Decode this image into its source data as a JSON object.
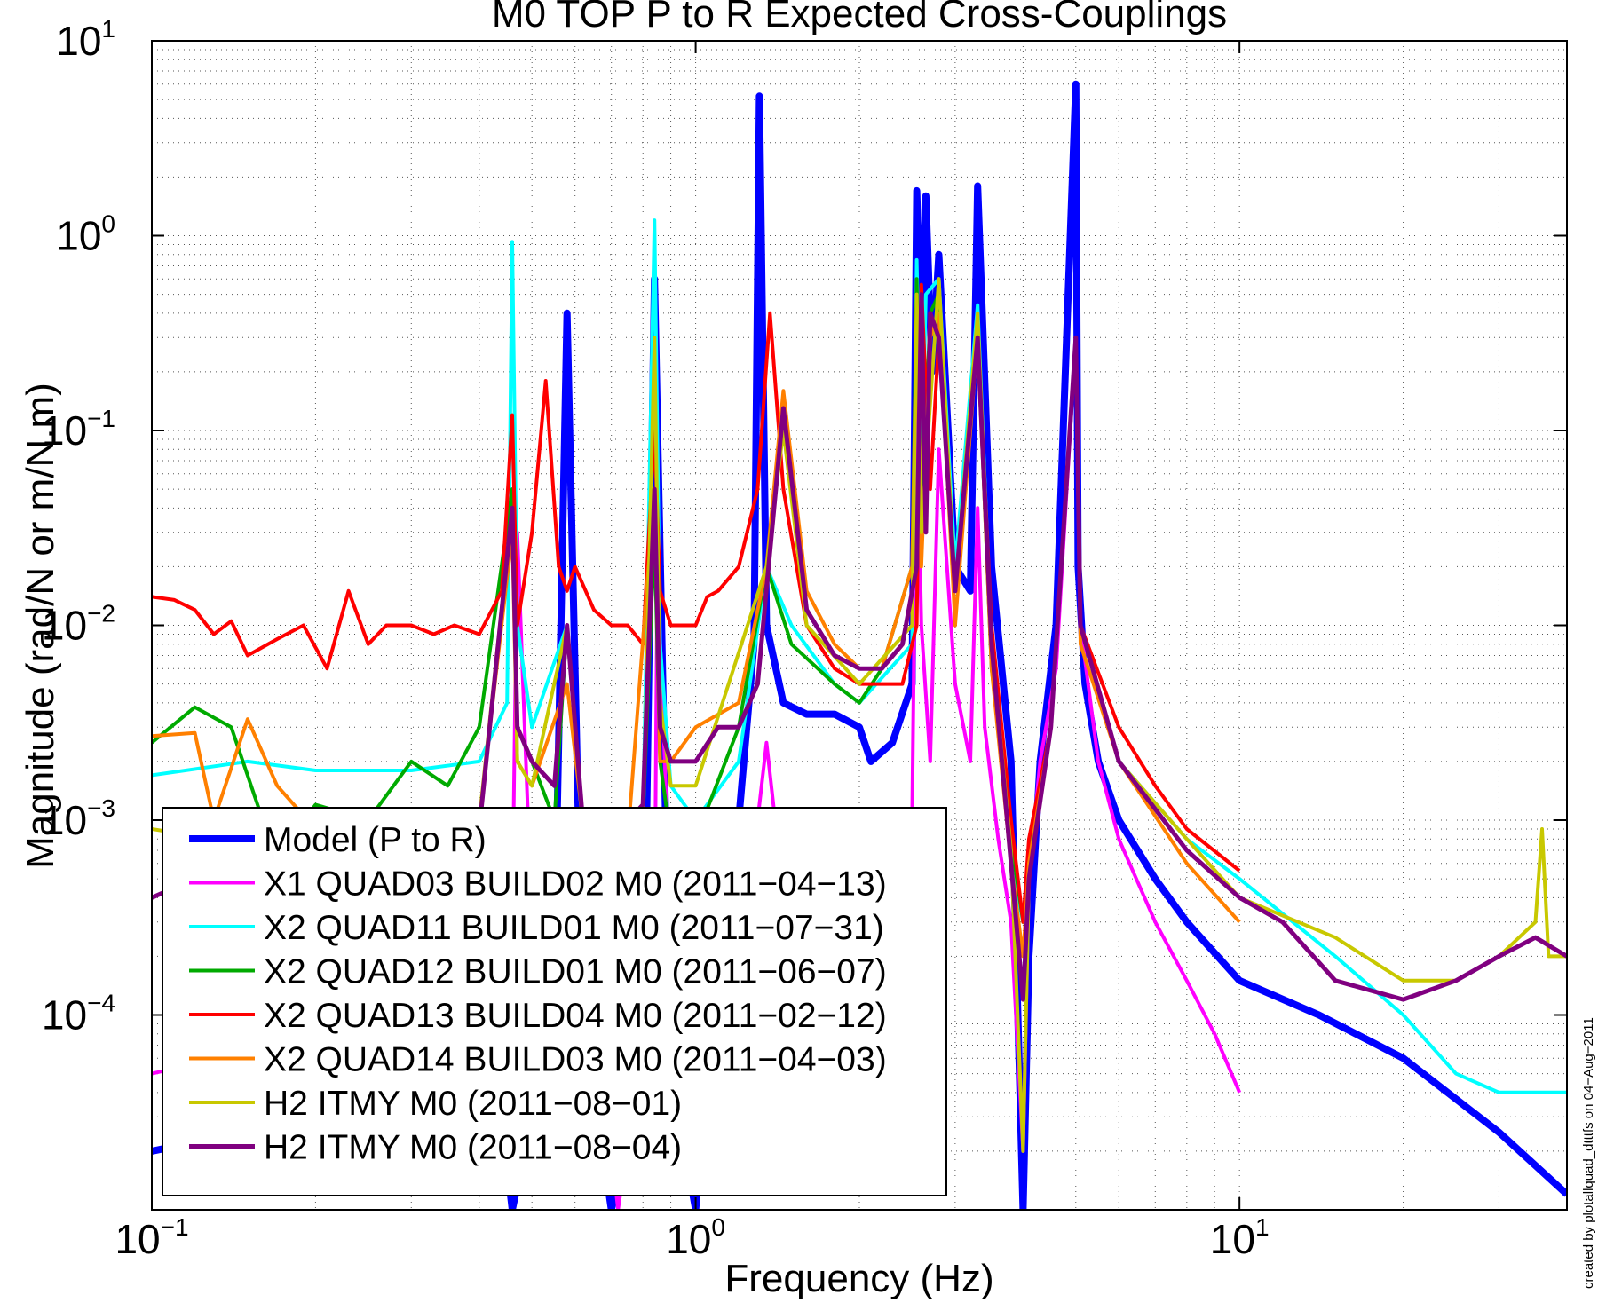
{
  "chart_data": {
    "type": "line",
    "title": "M0 TOP P to R Expected Cross-Couplings",
    "xlabel": "Frequency (Hz)",
    "ylabel": "Magnitude (rad/N or m/N.m)",
    "xscale": "log",
    "yscale": "log",
    "xlim": [
      0.1,
      40
    ],
    "ylim": [
      1e-05,
      10
    ],
    "grid": true,
    "legend_position": "bottom-left",
    "x_ticks": [
      {
        "base": "10",
        "exp": "−1",
        "value": 0.1
      },
      {
        "base": "10",
        "exp": "0",
        "value": 1
      },
      {
        "base": "10",
        "exp": "1",
        "value": 10
      }
    ],
    "y_ticks": [
      {
        "base": "10",
        "exp": "−4",
        "value": 0.0001
      },
      {
        "base": "10",
        "exp": "−3",
        "value": 0.001
      },
      {
        "base": "10",
        "exp": "−2",
        "value": 0.01
      },
      {
        "base": "10",
        "exp": "−1",
        "value": 0.1
      },
      {
        "base": "10",
        "exp": "0",
        "value": 1
      },
      {
        "base": "10",
        "exp": "1",
        "value": 10
      }
    ],
    "series": [
      {
        "name": "Model (P to R)",
        "color": "#0000FF",
        "width": 8,
        "x": [
          0.1,
          0.2,
          0.35,
          0.43,
          0.46,
          0.5,
          0.55,
          0.58,
          0.62,
          0.7,
          0.8,
          0.84,
          0.9,
          1.0,
          1.1,
          1.2,
          1.28,
          1.31,
          1.35,
          1.45,
          1.6,
          1.8,
          2.0,
          2.1,
          2.3,
          2.5,
          2.55,
          2.6,
          2.65,
          2.72,
          2.8,
          3.0,
          3.2,
          3.3,
          3.5,
          3.8,
          4.0,
          4.1,
          4.3,
          4.6,
          5.0,
          5.05,
          5.2,
          5.5,
          6.0,
          7.0,
          8.0,
          10.0,
          14.0,
          20.0,
          30.0,
          40.0
        ],
        "y": [
          2e-05,
          3e-05,
          4e-05,
          5e-05,
          1e-05,
          3e-05,
          0.0002,
          0.4,
          0.0001,
          1e-05,
          5e-05,
          0.6,
          5e-05,
          1e-05,
          0.0002,
          0.001,
          0.008,
          5.2,
          0.01,
          0.004,
          0.0035,
          0.0035,
          0.003,
          0.002,
          0.0025,
          0.005,
          1.7,
          0.3,
          1.6,
          0.2,
          0.8,
          0.02,
          0.015,
          1.8,
          0.02,
          0.002,
          1e-05,
          0.0002,
          0.002,
          0.01,
          6.0,
          0.02,
          0.005,
          0.002,
          0.001,
          0.0005,
          0.0003,
          0.00015,
          0.0001,
          6e-05,
          2.5e-05,
          1.2e-05
        ]
      },
      {
        "name": "X1 QUAD03 BUILD02 M0 (2011−04−13)",
        "color": "#FF00FF",
        "width": 4,
        "x": [
          0.1,
          0.3,
          0.46,
          0.47,
          0.5,
          0.57,
          0.6,
          0.72,
          0.84,
          0.85,
          0.9,
          1.0,
          1.2,
          1.3,
          1.35,
          1.4,
          1.5,
          1.7,
          2.0,
          2.2,
          2.5,
          2.55,
          2.6,
          2.7,
          2.8,
          3.0,
          3.2,
          3.3,
          3.4,
          3.6,
          3.8,
          4.0,
          4.1,
          4.3,
          4.6,
          5.0,
          5.1,
          5.5,
          6.0,
          7.0,
          8.0,
          9.0,
          10.0
        ],
        "y": [
          5e-05,
          0.0001,
          0.0003,
          0.03,
          0.0003,
          0.0002,
          0.001,
          1e-05,
          0.0002,
          0.02,
          0.0003,
          0.0002,
          0.0005,
          0.001,
          0.0025,
          0.001,
          0.0005,
          0.0003,
          0.0004,
          0.0005,
          0.001,
          0.15,
          0.01,
          0.002,
          0.08,
          0.005,
          0.002,
          0.04,
          0.003,
          0.0008,
          0.0003,
          2e-05,
          0.0005,
          0.002,
          0.006,
          0.3,
          0.01,
          0.002,
          0.0008,
          0.0003,
          0.00015,
          8e-05,
          4e-05
        ]
      },
      {
        "name": "X2 QUAD11 BUILD01 M0 (2011−07−31)",
        "color": "#00FFFF",
        "width": 4,
        "x": [
          0.1,
          0.15,
          0.2,
          0.3,
          0.4,
          0.45,
          0.46,
          0.47,
          0.5,
          0.58,
          0.62,
          0.8,
          0.84,
          0.86,
          0.9,
          1.0,
          1.2,
          1.35,
          1.5,
          1.8,
          2.0,
          2.5,
          2.55,
          2.6,
          2.65,
          2.8,
          3.0,
          3.3,
          3.5,
          3.8,
          4.0,
          4.1,
          4.5,
          5.0,
          5.1,
          6.0,
          8.0,
          10.0,
          15.0,
          20.0,
          25.0,
          30.0,
          35.0,
          40.0
        ],
        "y": [
          0.0017,
          0.002,
          0.0018,
          0.0018,
          0.002,
          0.004,
          0.93,
          0.01,
          0.003,
          0.01,
          0.001,
          0.001,
          1.2,
          0.008,
          0.0015,
          0.001,
          0.002,
          0.02,
          0.01,
          0.005,
          0.004,
          0.008,
          0.75,
          0.05,
          0.5,
          0.6,
          0.02,
          0.44,
          0.008,
          0.0006,
          0.0003,
          0.0007,
          0.003,
          0.3,
          0.01,
          0.002,
          0.0008,
          0.0005,
          0.0002,
          0.0001,
          5e-05,
          4e-05,
          4e-05,
          4e-05
        ]
      },
      {
        "name": "X2 QUAD12 BUILD01 M0 (2011−06−07)",
        "color": "#00AA00",
        "width": 4,
        "x": [
          0.1,
          0.12,
          0.14,
          0.16,
          0.18,
          0.2,
          0.25,
          0.3,
          0.35,
          0.4,
          0.46,
          0.47,
          0.5,
          0.55,
          0.58,
          0.62,
          0.7,
          0.8,
          0.84,
          0.86,
          0.9,
          1.0,
          1.2,
          1.35,
          1.5,
          1.8,
          2.0,
          2.2,
          2.5,
          2.55,
          2.6,
          2.7,
          2.8,
          3.0,
          3.3,
          3.5,
          3.8,
          4.0,
          4.1,
          4.5,
          5.0,
          5.1,
          6.0,
          8.0,
          10.0
        ],
        "y": [
          0.0025,
          0.0038,
          0.003,
          0.001,
          0.0008,
          0.0012,
          0.001,
          0.002,
          0.0015,
          0.003,
          0.05,
          0.003,
          0.002,
          0.001,
          0.01,
          0.001,
          0.0006,
          0.001,
          0.03,
          0.002,
          0.0008,
          0.0008,
          0.003,
          0.02,
          0.008,
          0.005,
          0.004,
          0.006,
          0.02,
          0.6,
          0.03,
          0.4,
          0.5,
          0.015,
          0.3,
          0.006,
          0.0008,
          0.0003,
          0.0007,
          0.003,
          0.3,
          0.01,
          0.002,
          0.0007,
          0.0004
        ]
      },
      {
        "name": "X2 QUAD13 BUILD04 M0 (2011−02−12)",
        "color": "#FF0000",
        "width": 4,
        "x": [
          0.1,
          0.11,
          0.12,
          0.13,
          0.14,
          0.15,
          0.17,
          0.19,
          0.21,
          0.23,
          0.25,
          0.27,
          0.3,
          0.33,
          0.36,
          0.4,
          0.44,
          0.46,
          0.47,
          0.5,
          0.53,
          0.56,
          0.58,
          0.6,
          0.65,
          0.7,
          0.75,
          0.8,
          0.84,
          0.86,
          0.9,
          1.0,
          1.05,
          1.1,
          1.2,
          1.3,
          1.37,
          1.45,
          1.6,
          1.8,
          2.0,
          2.2,
          2.4,
          2.55,
          2.6,
          2.7,
          2.8,
          3.0,
          3.3,
          3.5,
          3.8,
          4.0,
          4.1,
          4.5,
          5.0,
          5.1,
          6.0,
          7.0,
          8.0,
          10.0
        ],
        "y": [
          0.014,
          0.0135,
          0.012,
          0.009,
          0.0105,
          0.007,
          0.0085,
          0.01,
          0.006,
          0.015,
          0.008,
          0.01,
          0.01,
          0.009,
          0.01,
          0.009,
          0.015,
          0.12,
          0.01,
          0.03,
          0.18,
          0.02,
          0.015,
          0.02,
          0.012,
          0.01,
          0.01,
          0.008,
          0.1,
          0.015,
          0.01,
          0.01,
          0.014,
          0.015,
          0.02,
          0.05,
          0.4,
          0.05,
          0.01,
          0.006,
          0.005,
          0.005,
          0.005,
          0.01,
          0.56,
          0.05,
          0.3,
          0.015,
          0.3,
          0.01,
          0.001,
          0.0003,
          0.0008,
          0.003,
          0.3,
          0.01,
          0.003,
          0.0015,
          0.0009,
          0.00055
        ]
      },
      {
        "name": "X2 QUAD14 BUILD03 M0 (2011−04−03)",
        "color": "#FF8000",
        "width": 4,
        "x": [
          0.1,
          0.12,
          0.13,
          0.15,
          0.17,
          0.2,
          0.25,
          0.3,
          0.35,
          0.4,
          0.46,
          0.47,
          0.5,
          0.58,
          0.62,
          0.75,
          0.84,
          0.86,
          0.9,
          1.0,
          1.2,
          1.35,
          1.45,
          1.6,
          1.8,
          2.0,
          2.2,
          2.5,
          2.55,
          2.6,
          2.7,
          2.8,
          3.0,
          3.3,
          3.5,
          3.8,
          4.0,
          4.1,
          4.5,
          5.0,
          5.1,
          6.0,
          8.0,
          10.0
        ],
        "y": [
          0.0027,
          0.0028,
          0.001,
          0.0033,
          0.0015,
          0.0009,
          0.0008,
          0.0005,
          0.0006,
          0.001,
          0.03,
          0.002,
          0.0015,
          0.005,
          0.001,
          0.0008,
          0.05,
          0.002,
          0.002,
          0.003,
          0.004,
          0.02,
          0.16,
          0.015,
          0.008,
          0.006,
          0.006,
          0.02,
          0.4,
          0.02,
          0.3,
          0.4,
          0.01,
          0.3,
          0.006,
          0.0006,
          0.0002,
          0.0006,
          0.003,
          0.3,
          0.008,
          0.002,
          0.0006,
          0.0003
        ]
      },
      {
        "name": "H2 ITMY  M0 (2011−08−01)",
        "color": "#C8C800",
        "width": 4,
        "x": [
          0.1,
          0.13,
          0.15,
          0.2,
          0.3,
          0.4,
          0.46,
          0.47,
          0.5,
          0.58,
          0.62,
          0.8,
          0.84,
          0.86,
          0.9,
          1.0,
          1.35,
          1.45,
          1.6,
          2.0,
          2.5,
          2.55,
          2.6,
          2.8,
          3.0,
          3.3,
          3.5,
          3.8,
          4.0,
          4.1,
          4.5,
          5.0,
          5.1,
          6.0,
          8.0,
          10.0,
          15.0,
          20.0,
          25.0,
          30.0,
          35.0,
          36.0,
          37.0,
          40.0
        ],
        "y": [
          0.0009,
          0.0008,
          0.001,
          0.0007,
          0.0008,
          0.001,
          0.04,
          0.002,
          0.0015,
          0.01,
          0.0009,
          0.0009,
          0.3,
          0.004,
          0.0015,
          0.0015,
          0.02,
          0.1,
          0.01,
          0.005,
          0.01,
          0.5,
          0.03,
          0.6,
          0.015,
          0.4,
          0.008,
          0.0007,
          2e-05,
          0.0005,
          0.003,
          0.3,
          0.01,
          0.002,
          0.0008,
          0.0004,
          0.00025,
          0.00015,
          0.00015,
          0.0002,
          0.0003,
          0.0009,
          0.0002,
          0.0002
        ]
      },
      {
        "name": "H2 ITMY  M0 (2011−08−04)",
        "color": "#800080",
        "width": 5,
        "x": [
          0.1,
          0.12,
          0.15,
          0.2,
          0.3,
          0.4,
          0.46,
          0.47,
          0.5,
          0.55,
          0.58,
          0.62,
          0.7,
          0.8,
          0.84,
          0.86,
          0.9,
          1.0,
          1.1,
          1.2,
          1.3,
          1.45,
          1.6,
          1.8,
          2.0,
          2.2,
          2.4,
          2.55,
          2.6,
          2.65,
          2.7,
          2.8,
          3.0,
          3.3,
          3.5,
          3.8,
          4.0,
          4.1,
          4.5,
          5.0,
          5.1,
          6.0,
          8.0,
          10.0,
          12.0,
          15.0,
          20.0,
          25.0,
          30.0,
          35.0,
          40.0
        ],
        "y": [
          0.0004,
          0.0005,
          0.0006,
          0.0005,
          0.0005,
          0.0009,
          0.04,
          0.003,
          0.002,
          0.0015,
          0.01,
          0.001,
          0.0008,
          0.0012,
          0.05,
          0.003,
          0.002,
          0.002,
          0.003,
          0.003,
          0.005,
          0.13,
          0.012,
          0.007,
          0.006,
          0.006,
          0.008,
          0.02,
          0.5,
          0.03,
          0.4,
          0.3,
          0.015,
          0.3,
          0.008,
          0.0006,
          0.00012,
          0.0005,
          0.003,
          0.3,
          0.01,
          0.002,
          0.0007,
          0.0004,
          0.0003,
          0.00015,
          0.00012,
          0.00015,
          0.0002,
          0.00025,
          0.0002
        ]
      }
    ]
  },
  "stamp": "created by plotallquad_dtttfs on 04−Aug−2011"
}
